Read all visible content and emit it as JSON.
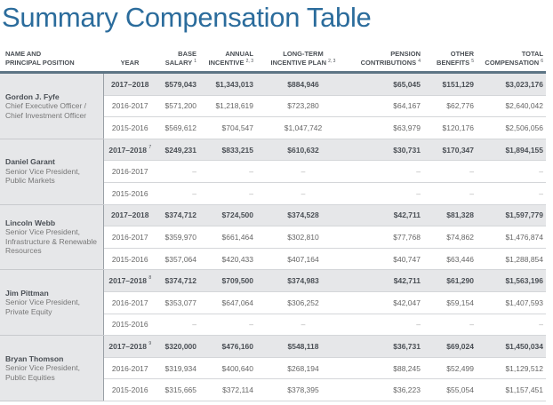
{
  "title": "Summary Compensation Table",
  "headers": {
    "name": [
      "Name and",
      "Principal Position"
    ],
    "year": "Year",
    "base": [
      "Base",
      "Salary",
      "1"
    ],
    "annual": [
      "Annual",
      "Incentive",
      "2, 3"
    ],
    "ltip": [
      "Long-Term",
      "Incentive Plan",
      "2, 3"
    ],
    "pension": [
      "Pension",
      "Contributions",
      "4"
    ],
    "other": [
      "Other",
      "Benefits",
      "5"
    ],
    "total": [
      "Total",
      "Compensation",
      "6"
    ]
  },
  "executives": [
    {
      "name": "Gordon J. Fyfe",
      "position": "Chief Executive Officer / Chief Investment Officer",
      "rows": [
        {
          "year": "2017–2018",
          "note": "",
          "base": "$579,043",
          "annual": "$1,343,013",
          "ltip": "$884,946",
          "pension": "$65,045",
          "other": "$151,129",
          "total": "$3,023,176"
        },
        {
          "year": "2016-2017",
          "note": "",
          "base": "$571,200",
          "annual": "$1,218,619",
          "ltip": "$723,280",
          "pension": "$64,167",
          "other": "$62,776",
          "total": "$2,640,042"
        },
        {
          "year": "2015-2016",
          "note": "",
          "base": "$569,612",
          "annual": "$704,547",
          "ltip": "$1,047,742",
          "pension": "$63,979",
          "other": "$120,176",
          "total": "$2,506,056"
        }
      ]
    },
    {
      "name": "Daniel Garant",
      "position": "Senior Vice President, Public Markets",
      "rows": [
        {
          "year": "2017–2018",
          "note": "7",
          "base": "$249,231",
          "annual": "$833,215",
          "ltip": "$610,632",
          "pension": "$30,731",
          "other": "$170,347",
          "total": "$1,894,155"
        },
        {
          "year": "2016-2017",
          "note": "",
          "base": "–",
          "annual": "–",
          "ltip": "–",
          "pension": "–",
          "other": "–",
          "total": "–"
        },
        {
          "year": "2015-2016",
          "note": "",
          "base": "–",
          "annual": "–",
          "ltip": "–",
          "pension": "–",
          "other": "–",
          "total": "–"
        }
      ]
    },
    {
      "name": "Lincoln Webb",
      "position": "Senior Vice President, Infrastructure & Renewable Resources",
      "rows": [
        {
          "year": "2017–2018",
          "note": "",
          "base": "$374,712",
          "annual": "$724,500",
          "ltip": "$374,528",
          "pension": "$42,711",
          "other": "$81,328",
          "total": "$1,597,779"
        },
        {
          "year": "2016-2017",
          "note": "",
          "base": "$359,970",
          "annual": "$661,464",
          "ltip": "$302,810",
          "pension": "$77,768",
          "other": "$74,862",
          "total": "$1,476,874"
        },
        {
          "year": "2015-2016",
          "note": "",
          "base": "$357,064",
          "annual": "$420,433",
          "ltip": "$407,164",
          "pension": "$40,747",
          "other": "$63,446",
          "total": "$1,288,854"
        }
      ]
    },
    {
      "name": "Jim Pittman",
      "position": "Senior Vice President, Private Equity",
      "rows": [
        {
          "year": "2017–2018",
          "note": "8",
          "base": "$374,712",
          "annual": "$709,500",
          "ltip": "$374,983",
          "pension": "$42,711",
          "other": "$61,290",
          "total": "$1,563,196"
        },
        {
          "year": "2016-2017",
          "note": "",
          "base": "$353,077",
          "annual": "$647,064",
          "ltip": "$306,252",
          "pension": "$42,047",
          "other": "$59,154",
          "total": "$1,407,593"
        },
        {
          "year": "2015-2016",
          "note": "",
          "base": "–",
          "annual": "–",
          "ltip": "–",
          "pension": "–",
          "other": "–",
          "total": "–"
        }
      ]
    },
    {
      "name": "Bryan Thomson",
      "position": "Senior Vice President, Public Equities",
      "rows": [
        {
          "year": "2017–2018",
          "note": "9",
          "base": "$320,000",
          "annual": "$476,160",
          "ltip": "$548,118",
          "pension": "$36,731",
          "other": "$69,024",
          "total": "$1,450,034"
        },
        {
          "year": "2016-2017",
          "note": "",
          "base": "$319,934",
          "annual": "$400,640",
          "ltip": "$268,194",
          "pension": "$88,245",
          "other": "$52,499",
          "total": "$1,129,512"
        },
        {
          "year": "2015-2016",
          "note": "",
          "base": "$315,665",
          "annual": "$372,114",
          "ltip": "$378,395",
          "pension": "$36,223",
          "other": "$55,054",
          "total": "$1,157,451"
        }
      ]
    }
  ]
}
